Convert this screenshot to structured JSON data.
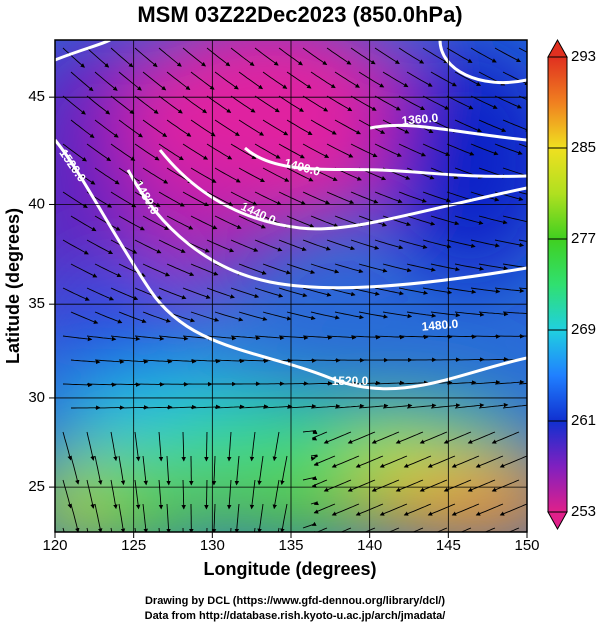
{
  "title": "MSM 03Z22Dec2023 (850.0hPa)",
  "x_label": "Longitude (degrees)",
  "y_label": "Latitude  (degrees)",
  "projection": "mercator",
  "xlim": [
    120,
    150
  ],
  "xticks": [
    120,
    125,
    130,
    135,
    140,
    145,
    150
  ],
  "ylim": [
    22.4,
    47.5
  ],
  "yticks": [
    25,
    30,
    35,
    40,
    45
  ],
  "colorbar": {
    "lim": [
      253,
      293
    ],
    "ticks": [
      253,
      261,
      269,
      277,
      285,
      293
    ],
    "colors": [
      "#e0208a",
      "#8020c0",
      "#1030d0",
      "#2080ff",
      "#20d0e0",
      "#30e070",
      "#40d020",
      "#b0e020",
      "#f0e020",
      "#f08020",
      "#e03020"
    ]
  },
  "contour_labels": [
    "1360.0",
    "1400.0",
    "1440.0",
    "1480.0",
    "1520.0",
    "1480.0",
    "1520.0"
  ],
  "credits": [
    "Drawing by DCL (https://www.gfd-dennou.org/library/dcl/)",
    "Data from http://database.rish.kyoto-u.ac.jp/arch/jmadata/"
  ]
}
